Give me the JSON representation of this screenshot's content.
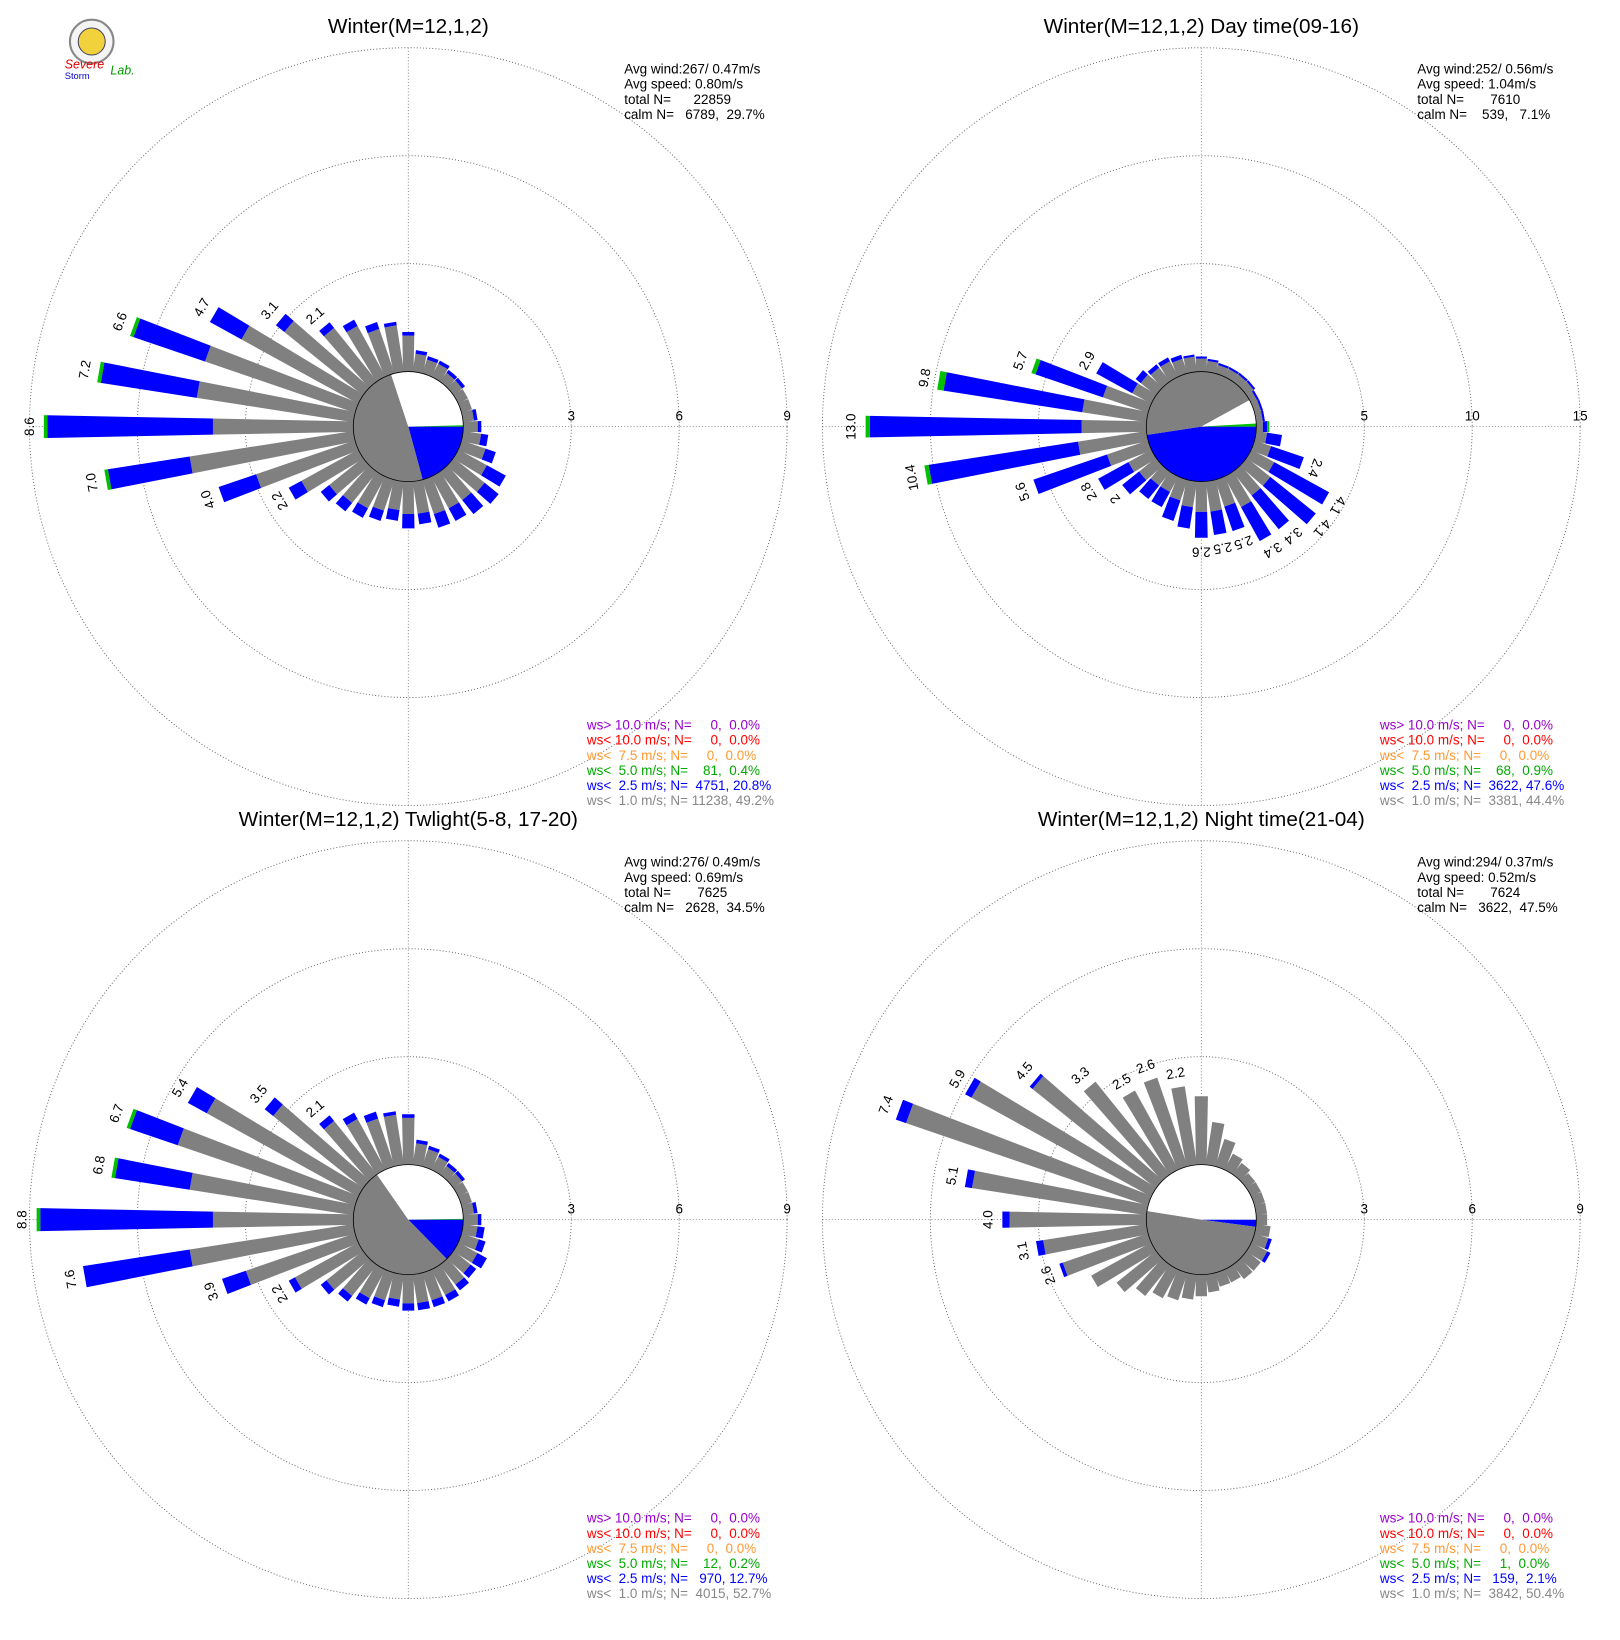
{
  "logo": [
    "Severe",
    "Storm",
    "Lab."
  ],
  "chart_data": [
    {
      "type": "windrose",
      "title": "Winter(M=12,1,2)",
      "stats": [
        "Avg wind:267/ 0.47m/s",
        "Avg speed: 0.80m/s",
        "total N=      22859",
        "calm N=   6789,  29.7%"
      ],
      "rlim": [
        0,
        9
      ],
      "rticks": [
        3,
        6,
        9
      ],
      "directions": [
        0,
        10,
        20,
        30,
        40,
        50,
        60,
        70,
        80,
        90,
        100,
        110,
        120,
        130,
        140,
        150,
        160,
        170,
        180,
        190,
        200,
        210,
        220,
        230,
        240,
        250,
        260,
        270,
        280,
        290,
        300,
        310,
        320,
        330,
        340,
        350
      ],
      "series": [
        {
          "color": "#808080",
          "values": [
            1.0,
            0.5,
            0.4,
            0.4,
            0.3,
            0.3,
            0.3,
            0.3,
            0.3,
            0.4,
            0.5,
            0.7,
            0.9,
            1.1,
            1.0,
            1.0,
            1.0,
            0.9,
            0.9,
            0.8,
            0.9,
            1.0,
            1.1,
            1.2,
            1.8,
            2.9,
            4.6,
            3.9,
            4.4,
            4.4,
            3.7,
            2.8,
            1.9,
            1.6,
            1.3,
            1.3
          ]
        },
        {
          "color": "#0000ff",
          "values": [
            0.1,
            0.1,
            0.1,
            0.1,
            0.1,
            0.1,
            0,
            0,
            0.1,
            0.1,
            0.2,
            0.3,
            0.6,
            0.5,
            0.5,
            0.4,
            0.4,
            0.3,
            0.4,
            0.3,
            0.3,
            0.3,
            0.3,
            0.3,
            0.4,
            1.1,
            2.3,
            4.6,
            2.7,
            2.1,
            1.0,
            0.3,
            0.2,
            0.2,
            0.2,
            0.1
          ]
        },
        {
          "color": "#00c000",
          "values": [
            0,
            0,
            0,
            0,
            0,
            0,
            0,
            0,
            0,
            0,
            0,
            0,
            0,
            0,
            0,
            0,
            0,
            0,
            0,
            0,
            0,
            0,
            0,
            0,
            0,
            0,
            0.1,
            0.1,
            0.1,
            0.1,
            0,
            0,
            0,
            0,
            0,
            0
          ]
        }
      ],
      "bar_labels": [
        null,
        null,
        null,
        null,
        null,
        null,
        null,
        null,
        null,
        null,
        null,
        null,
        null,
        null,
        null,
        null,
        null,
        null,
        null,
        null,
        null,
        null,
        null,
        null,
        "2.2",
        "4.0",
        "7.0",
        "8.6",
        "7.2",
        "6.6",
        "4.7",
        "3.1",
        "2.1",
        null,
        null,
        null
      ],
      "center_pie": {
        "values": [
          20.8,
          49.2,
          29.7,
          0.4
        ],
        "colors": [
          "#0000ff",
          "#808080",
          "#ffffff",
          "#00c000"
        ]
      },
      "legend": [
        {
          "text": "ws> 10.0 m/s; N=     0,  0.0%",
          "color": "#9900cc"
        },
        {
          "text": "ws< 10.0 m/s; N=     0,  0.0%",
          "color": "#ff0000"
        },
        {
          "text": "ws<  7.5 m/s; N=     0,  0.0%",
          "color": "#ff9933"
        },
        {
          "text": "ws<  5.0 m/s; N=    81,  0.4%",
          "color": "#00aa00"
        },
        {
          "text": "ws<  2.5 m/s; N=  4751, 20.8%",
          "color": "#0000ff"
        },
        {
          "text": "ws<  1.0 m/s; N= 11238, 49.2%",
          "color": "#888888"
        }
      ]
    },
    {
      "type": "windrose",
      "title": "Winter(M=12,1,2) Day time(09-16)",
      "stats": [
        "Avg wind:252/ 0.56m/s",
        "Avg speed: 1.04m/s",
        "total N=       7610",
        "calm N=    539,   7.1%"
      ],
      "rlim": [
        0,
        15
      ],
      "rticks": [
        5,
        10,
        15
      ],
      "directions": [
        0,
        10,
        20,
        30,
        40,
        50,
        60,
        70,
        80,
        90,
        100,
        110,
        120,
        130,
        140,
        150,
        160,
        170,
        180,
        190,
        200,
        210,
        220,
        230,
        240,
        250,
        260,
        270,
        280,
        290,
        300,
        310,
        320,
        330,
        340,
        350
      ],
      "series": [
        {
          "color": "#808080",
          "values": [
            0.6,
            0.5,
            0.4,
            0.4,
            0.4,
            0.4,
            0.3,
            0.3,
            0.3,
            0.3,
            0.5,
            0.8,
            1.2,
            1.4,
            1.4,
            1.6,
            1.3,
            1.4,
            1.4,
            1.2,
            1.0,
            0.8,
            0.8,
            1.0,
            1.2,
            2.0,
            3.2,
            3.0,
            3.0,
            2.2,
            1.0,
            0.9,
            0.8,
            0.8,
            0.7,
            0.7
          ]
        },
        {
          "color": "#0000ff",
          "values": [
            0.1,
            0.1,
            0.1,
            0.1,
            0.1,
            0.1,
            0.1,
            0.1,
            0.1,
            0.2,
            0.7,
            1.6,
            2.9,
            2.7,
            2.0,
            1.8,
            1.2,
            1.1,
            1.2,
            1.0,
            1.0,
            0.8,
            0.8,
            1.0,
            1.6,
            3.6,
            7.0,
            9.8,
            6.5,
            3.3,
            1.9,
            0.3,
            0.2,
            0.2,
            0.2,
            0.1
          ]
        },
        {
          "color": "#00c000",
          "values": [
            0,
            0,
            0,
            0,
            0,
            0,
            0,
            0,
            0,
            0.1,
            0,
            0,
            0,
            0,
            0,
            0,
            0,
            0,
            0,
            0,
            0,
            0,
            0,
            0,
            0,
            0,
            0.2,
            0.2,
            0.3,
            0.2,
            0,
            0,
            0,
            0,
            0,
            0
          ]
        }
      ],
      "bar_labels": [
        null,
        null,
        null,
        null,
        null,
        null,
        null,
        null,
        null,
        null,
        null,
        "2.4",
        "4.1",
        "4.1",
        "3.4",
        "3.4",
        "2.5",
        "2.5",
        "2.6",
        null,
        null,
        null,
        null,
        "2",
        "2.8",
        "5.6",
        "10.4",
        "13.0",
        "9.8",
        "5.7",
        "2.9",
        null,
        null,
        null,
        null,
        null
      ],
      "center_pie": {
        "values": [
          47.6,
          44.4,
          7.1,
          0.9
        ],
        "colors": [
          "#0000ff",
          "#808080",
          "#ffffff",
          "#00c000"
        ]
      },
      "legend": [
        {
          "text": "ws> 10.0 m/s; N=     0,  0.0%",
          "color": "#9900cc"
        },
        {
          "text": "ws< 10.0 m/s; N=     0,  0.0%",
          "color": "#ff0000"
        },
        {
          "text": "ws<  7.5 m/s; N=     0,  0.0%",
          "color": "#ff9933"
        },
        {
          "text": "ws<  5.0 m/s; N=    68,  0.9%",
          "color": "#00aa00"
        },
        {
          "text": "ws<  2.5 m/s; N=  3622, 47.6%",
          "color": "#0000ff"
        },
        {
          "text": "ws<  1.0 m/s; N=  3381, 44.4%",
          "color": "#888888"
        }
      ]
    },
    {
      "type": "windrose",
      "title": "Winter(M=12,1,2) Twlight(5-8, 17-20)",
      "stats": [
        "Avg wind:276/ 0.49m/s",
        "Avg speed: 0.69m/s",
        "total N=       7625",
        "calm N=   2628,  34.5%"
      ],
      "rlim": [
        0,
        9
      ],
      "rticks": [
        3,
        6,
        9
      ],
      "directions": [
        0,
        10,
        20,
        30,
        40,
        50,
        60,
        70,
        80,
        90,
        100,
        110,
        120,
        130,
        140,
        150,
        160,
        170,
        180,
        190,
        200,
        210,
        220,
        230,
        240,
        250,
        260,
        270,
        280,
        290,
        300,
        310,
        320,
        330,
        340,
        350
      ],
      "series": [
        {
          "color": "#808080",
          "values": [
            1.3,
            0.6,
            0.5,
            0.4,
            0.3,
            0.3,
            0.3,
            0.3,
            0.3,
            0.4,
            0.4,
            0.5,
            0.6,
            0.6,
            0.7,
            0.8,
            0.8,
            0.8,
            0.8,
            0.7,
            0.8,
            0.9,
            1.1,
            1.3,
            2.0,
            3.2,
            4.6,
            3.9,
            4.6,
            5.2,
            4.8,
            3.2,
            1.9,
            1.6,
            1.4,
            1.4
          ]
        },
        {
          "color": "#0000ff",
          "values": [
            0.1,
            0.1,
            0.1,
            0.1,
            0.1,
            0.1,
            0,
            0,
            0.1,
            0.1,
            0.2,
            0.2,
            0.3,
            0.2,
            0.2,
            0.2,
            0.2,
            0.2,
            0.2,
            0.2,
            0.2,
            0.2,
            0.2,
            0.2,
            0.2,
            0.7,
            3.0,
            4.8,
            2.1,
            1.4,
            0.6,
            0.3,
            0.2,
            0.2,
            0.2,
            0.1
          ]
        },
        {
          "color": "#00c000",
          "values": [
            0,
            0,
            0,
            0,
            0,
            0,
            0,
            0,
            0,
            0,
            0,
            0,
            0,
            0,
            0,
            0,
            0,
            0,
            0,
            0,
            0,
            0,
            0,
            0,
            0,
            0,
            0,
            0.1,
            0.1,
            0.1,
            0,
            0,
            0,
            0,
            0,
            0
          ]
        }
      ],
      "bar_labels": [
        null,
        null,
        null,
        null,
        null,
        null,
        null,
        null,
        null,
        null,
        null,
        null,
        null,
        null,
        null,
        null,
        null,
        null,
        null,
        null,
        null,
        null,
        null,
        null,
        "2.2",
        "3.9",
        "7.6",
        "8.8",
        "6.8",
        "6.7",
        "5.4",
        "3.5",
        "2.1",
        null,
        null,
        null
      ],
      "center_pie": {
        "values": [
          12.7,
          52.7,
          34.5,
          0.2
        ],
        "colors": [
          "#0000ff",
          "#808080",
          "#ffffff",
          "#00c000"
        ]
      },
      "legend": [
        {
          "text": "ws> 10.0 m/s; N=     0,  0.0%",
          "color": "#9900cc"
        },
        {
          "text": "ws< 10.0 m/s; N=     0,  0.0%",
          "color": "#ff0000"
        },
        {
          "text": "ws<  7.5 m/s; N=     0,  0.0%",
          "color": "#ff9933"
        },
        {
          "text": "ws<  5.0 m/s; N=    12,  0.2%",
          "color": "#00aa00"
        },
        {
          "text": "ws<  2.5 m/s; N=   970, 12.7%",
          "color": "#0000ff"
        },
        {
          "text": "ws<  1.0 m/s; N=  4015, 52.7%",
          "color": "#888888"
        }
      ]
    },
    {
      "type": "windrose",
      "title": "Winter(M=12,1,2) Night time(21-04)",
      "stats": [
        "Avg wind:294/ 0.37m/s",
        "Avg speed: 0.52m/s",
        "total N=       7624",
        "calm N=   3622,  47.5%"
      ],
      "rlim": [
        0,
        9
      ],
      "rticks": [
        3,
        6,
        9
      ],
      "directions": [
        0,
        10,
        20,
        30,
        40,
        50,
        60,
        70,
        80,
        90,
        100,
        110,
        120,
        130,
        140,
        150,
        160,
        170,
        180,
        190,
        200,
        210,
        220,
        230,
        240,
        250,
        260,
        270,
        280,
        290,
        300,
        310,
        320,
        330,
        340,
        350
      ],
      "series": [
        {
          "color": "#808080",
          "values": [
            1.9,
            1.2,
            0.8,
            0.5,
            0.4,
            0.3,
            0.3,
            0.3,
            0.3,
            0.3,
            0.4,
            0.4,
            0.5,
            0.5,
            0.5,
            0.4,
            0.4,
            0.5,
            0.6,
            0.7,
            0.8,
            0.9,
            1.1,
            1.4,
            1.9,
            2.5,
            2.9,
            3.8,
            4.9,
            7.1,
            5.7,
            4.4,
            3.3,
            2.5,
            2.6,
            2.2
          ]
        },
        {
          "color": "#0000ff",
          "values": [
            0,
            0,
            0,
            0,
            0,
            0,
            0,
            0,
            0,
            0,
            0,
            0.1,
            0.1,
            0,
            0,
            0,
            0,
            0,
            0,
            0,
            0,
            0,
            0,
            0,
            0,
            0.1,
            0.2,
            0.2,
            0.2,
            0.3,
            0.2,
            0.1,
            0,
            0,
            0,
            0
          ]
        }
      ],
      "bar_labels": [
        null,
        null,
        null,
        null,
        null,
        null,
        null,
        null,
        null,
        null,
        null,
        null,
        null,
        null,
        null,
        null,
        null,
        null,
        null,
        null,
        null,
        null,
        null,
        null,
        null,
        "2.6",
        "3.1",
        "4.0",
        "5.1",
        "7.4",
        "5.9",
        "4.5",
        "3.3",
        "2.5",
        "2.6",
        "2.2"
      ],
      "center_pie": {
        "values": [
          2.1,
          50.4,
          47.5,
          0.0
        ],
        "colors": [
          "#0000ff",
          "#808080",
          "#ffffff",
          "#00c000"
        ]
      },
      "legend": [
        {
          "text": "ws> 10.0 m/s; N=     0,  0.0%",
          "color": "#9900cc"
        },
        {
          "text": "ws< 10.0 m/s; N=     0,  0.0%",
          "color": "#ff0000"
        },
        {
          "text": "ws<  7.5 m/s; N=     0,  0.0%",
          "color": "#ff9933"
        },
        {
          "text": "ws<  5.0 m/s; N=     1,  0.0%",
          "color": "#00aa00"
        },
        {
          "text": "ws<  2.5 m/s; N=   159,  2.1%",
          "color": "#0000ff"
        },
        {
          "text": "ws<  1.0 m/s; N=  3842, 50.4%",
          "color": "#888888"
        }
      ]
    }
  ]
}
